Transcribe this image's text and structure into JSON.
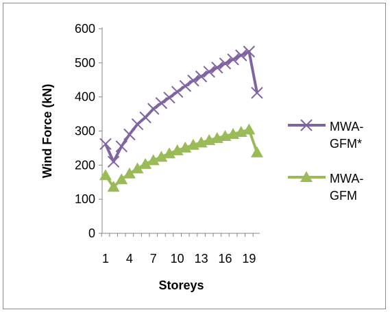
{
  "chart_data": {
    "type": "line",
    "title": "",
    "xlabel": "Storeys",
    "ylabel": "Wind Force (kN)",
    "ylim": [
      0,
      600
    ],
    "yticks": [
      0,
      100,
      200,
      300,
      400,
      500,
      600
    ],
    "x": [
      1,
      2,
      3,
      4,
      5,
      6,
      7,
      8,
      9,
      10,
      11,
      12,
      13,
      14,
      15,
      16,
      17,
      18,
      19,
      20
    ],
    "xtick_labels": [
      "1",
      "4",
      "7",
      "10",
      "13",
      "16",
      "19"
    ],
    "xtick_positions": [
      1,
      4,
      7,
      10,
      13,
      16,
      19
    ],
    "grid": false,
    "legend_position": "right",
    "series": [
      {
        "name": "MWA-GFM*",
        "color": "#8064a2",
        "marker": "x",
        "values": [
          262,
          210,
          255,
          290,
          320,
          340,
          365,
          382,
          398,
          415,
          432,
          448,
          460,
          474,
          486,
          498,
          510,
          522,
          533,
          412
        ]
      },
      {
        "name": "MWA-GFM",
        "color": "#9bbb59",
        "marker": "triangle",
        "values": [
          170,
          136,
          158,
          175,
          190,
          203,
          214,
          224,
          234,
          243,
          251,
          259,
          266,
          273,
          279,
          285,
          291,
          297,
          304,
          237
        ]
      }
    ],
    "legend_lines": [
      [
        "MWA-",
        "GFM*"
      ],
      [
        "MWA-",
        "GFM"
      ]
    ]
  }
}
